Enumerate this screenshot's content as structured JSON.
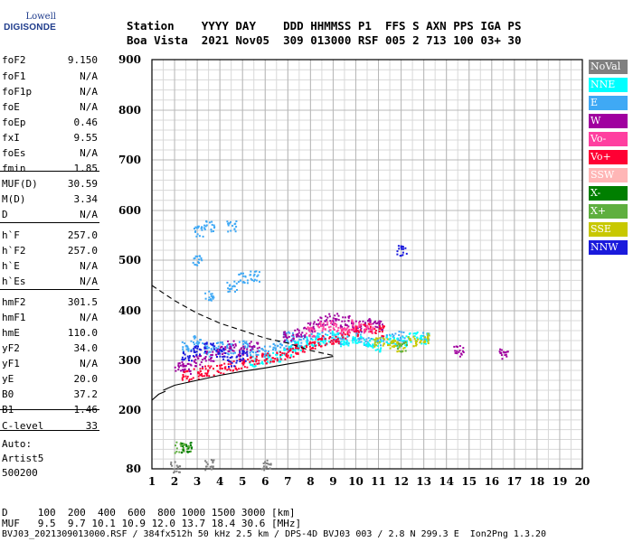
{
  "logo": {
    "line1": "Lowell",
    "line2": "DIGISONDE"
  },
  "header": {
    "row1": "Station    YYYY DAY    DDD HHMMSS P1  FFS S AXN PPS IGA PS",
    "row2": "Boa Vista  2021 Nov05  309 013000 RSF 005 2 713 100 03+ 30"
  },
  "params": [
    {
      "name": "foF2",
      "value": "9.150"
    },
    {
      "name": "foF1",
      "value": "N/A"
    },
    {
      "name": "foF1p",
      "value": "N/A"
    },
    {
      "name": "foE",
      "value": "N/A"
    },
    {
      "name": "foEp",
      "value": "0.46"
    },
    {
      "name": "fxI",
      "value": "9.55"
    },
    {
      "name": "foEs",
      "value": "N/A"
    },
    {
      "name": "fmin",
      "value": "1.85"
    },
    {
      "name": "MUF(D)",
      "value": "30.59"
    },
    {
      "name": "M(D)",
      "value": "3.34"
    },
    {
      "name": "D",
      "value": "N/A"
    },
    {
      "name": "h`F",
      "value": "257.0"
    },
    {
      "name": "h`F2",
      "value": "257.0"
    },
    {
      "name": "h`E",
      "value": "N/A"
    },
    {
      "name": "h`Es",
      "value": "N/A"
    },
    {
      "name": "hmF2",
      "value": "301.5"
    },
    {
      "name": "hmF1",
      "value": "N/A"
    },
    {
      "name": "hmE",
      "value": "110.0"
    },
    {
      "name": "yF2",
      "value": "34.0"
    },
    {
      "name": "yF1",
      "value": "N/A"
    },
    {
      "name": "yE",
      "value": "20.0"
    },
    {
      "name": "B0",
      "value": "37.2"
    },
    {
      "name": "B1",
      "value": "1.46"
    },
    {
      "name": "C-level",
      "value": "33"
    }
  ],
  "auto": {
    "line1": "Auto:",
    "line2": "Artist5",
    "line3": "500200"
  },
  "legend": [
    {
      "label": "NoVal",
      "color": "#808080"
    },
    {
      "label": "NNE",
      "color": "#00ffff"
    },
    {
      "label": "E",
      "color": "#3fa9f5"
    },
    {
      "label": "W",
      "color": "#a0009f"
    },
    {
      "label": "Vo-",
      "color": "#ff3fa0"
    },
    {
      "label": "Vo+",
      "color": "#ff0033"
    },
    {
      "label": "SSW",
      "color": "#ffb6b6"
    },
    {
      "label": "X-",
      "color": "#007f00"
    },
    {
      "label": "X+",
      "color": "#5faf3f"
    },
    {
      "label": "SSE",
      "color": "#c8c800"
    },
    {
      "label": "NNW",
      "color": "#1a1adc"
    }
  ],
  "footer": {
    "row1": "D     100  200  400  600  800 1000 1500 3000 [km]",
    "row2": "MUF   9.5  9.7 10.1 10.9 12.0 13.7 18.4 30.6 [MHz]",
    "row3": "BVJ03_2021309013000.RSF / 384fx512h 50 kHz 2.5 km / DPS-4D BVJ03 003 / 2.8 N 299.3 E  Ion2Png 1.3.20"
  },
  "chart_data": {
    "type": "scatter",
    "xlabel": "",
    "ylabel": "",
    "xlim": [
      1,
      20
    ],
    "ylim": [
      80,
      900
    ],
    "x_ticks": [
      1,
      2,
      3,
      4,
      5,
      6,
      7,
      8,
      9,
      10,
      11,
      12,
      13,
      14,
      15,
      16,
      17,
      18,
      19,
      20
    ],
    "y_ticks": [
      80,
      200,
      300,
      400,
      500,
      600,
      700,
      800,
      900
    ],
    "grid": true,
    "legend_position": "right",
    "series": [
      {
        "name": "E",
        "color": "#3fa9f5",
        "points": [
          [
            2.5,
            330
          ],
          [
            3,
            340
          ],
          [
            3.5,
            320
          ],
          [
            4,
            330
          ],
          [
            4.5,
            325
          ],
          [
            5,
            330
          ],
          [
            5.5,
            320
          ],
          [
            6,
            320
          ],
          [
            6.5,
            330
          ],
          [
            7,
            330
          ],
          [
            7.5,
            340
          ],
          [
            8,
            345
          ],
          [
            8.5,
            350
          ],
          [
            9,
            350
          ],
          [
            9.5,
            345
          ],
          [
            10,
            350
          ],
          [
            10.5,
            340
          ],
          [
            11,
            340
          ],
          [
            11.5,
            345
          ],
          [
            12,
            350
          ],
          [
            3,
            500
          ],
          [
            3.5,
            430
          ],
          [
            4.5,
            450
          ],
          [
            5,
            465
          ],
          [
            5.5,
            470
          ],
          [
            3,
            560
          ],
          [
            3.5,
            570
          ],
          [
            4.5,
            570
          ],
          [
            7,
            350
          ],
          [
            13,
            350
          ]
        ]
      },
      {
        "name": "NNE",
        "color": "#00ffff",
        "points": [
          [
            5.5,
            300
          ],
          [
            6,
            305
          ],
          [
            6.5,
            310
          ],
          [
            7,
            320
          ],
          [
            7.5,
            330
          ],
          [
            8,
            340
          ],
          [
            8.5,
            345
          ],
          [
            9,
            350
          ],
          [
            9.5,
            340
          ],
          [
            10,
            345
          ],
          [
            10.5,
            335
          ],
          [
            11,
            330
          ],
          [
            11.5,
            345
          ],
          [
            12,
            340
          ],
          [
            12.5,
            350
          ],
          [
            13,
            345
          ]
        ]
      },
      {
        "name": "W",
        "color": "#a0009f",
        "points": [
          [
            2.2,
            290
          ],
          [
            2.5,
            285
          ],
          [
            3,
            300
          ],
          [
            3.5,
            310
          ],
          [
            4,
            320
          ],
          [
            4.5,
            330
          ],
          [
            5,
            320
          ],
          [
            5.5,
            330
          ],
          [
            7,
            350
          ],
          [
            7.5,
            360
          ],
          [
            8,
            370
          ],
          [
            8.5,
            380
          ],
          [
            9,
            385
          ],
          [
            9.5,
            380
          ],
          [
            10,
            370
          ],
          [
            10.5,
            375
          ],
          [
            11,
            370
          ],
          [
            14.5,
            320
          ],
          [
            16.5,
            315
          ]
        ]
      },
      {
        "name": "Vo+",
        "color": "#ff0033",
        "points": [
          [
            2.5,
            270
          ],
          [
            3,
            275
          ],
          [
            3.5,
            280
          ],
          [
            4,
            285
          ],
          [
            4.5,
            290
          ],
          [
            5,
            295
          ],
          [
            5.5,
            300
          ],
          [
            6,
            305
          ],
          [
            6.5,
            310
          ],
          [
            7,
            315
          ],
          [
            7.5,
            325
          ],
          [
            8,
            330
          ],
          [
            8.5,
            340
          ],
          [
            9,
            345
          ],
          [
            9.5,
            355
          ],
          [
            10,
            360
          ],
          [
            10.5,
            365
          ],
          [
            11,
            360
          ]
        ]
      },
      {
        "name": "Vo-",
        "color": "#ff3fa0",
        "points": [
          [
            8,
            360
          ],
          [
            8.5,
            370
          ],
          [
            9,
            370
          ],
          [
            9.5,
            365
          ],
          [
            10,
            372
          ],
          [
            10.5,
            368
          ]
        ]
      },
      {
        "name": "SSE",
        "color": "#c8c800",
        "points": [
          [
            11,
            340
          ],
          [
            11.5,
            335
          ],
          [
            12,
            330
          ],
          [
            12.5,
            340
          ],
          [
            13,
            345
          ]
        ]
      },
      {
        "name": "NNW",
        "color": "#1a1adc",
        "points": [
          [
            2.5,
            310
          ],
          [
            3,
            320
          ],
          [
            3.5,
            330
          ],
          [
            4,
            315
          ],
          [
            4.5,
            300
          ],
          [
            5,
            310
          ],
          [
            12,
            520
          ]
        ]
      },
      {
        "name": "X+",
        "color": "#5faf3f",
        "points": [
          [
            2.2,
            125
          ],
          [
            2.5,
            125
          ],
          [
            12,
            330
          ]
        ]
      },
      {
        "name": "X-",
        "color": "#007f00",
        "points": [
          [
            2.5,
            125
          ]
        ]
      },
      {
        "name": "NoVal",
        "color": "#808080",
        "points": [
          [
            3.5,
            90
          ],
          [
            6,
            90
          ],
          [
            2,
            85
          ]
        ]
      }
    ],
    "profile_curve": {
      "style": "solid",
      "points": [
        [
          1.5,
          240
        ],
        [
          2,
          250
        ],
        [
          3,
          260
        ],
        [
          4,
          270
        ],
        [
          5,
          278
        ],
        [
          6,
          285
        ],
        [
          7,
          293
        ],
        [
          8,
          300
        ],
        [
          9,
          308
        ]
      ]
    },
    "virtual_curve": {
      "style": "dashed",
      "points": [
        [
          1,
          450
        ],
        [
          2,
          420
        ],
        [
          3,
          395
        ],
        [
          4,
          375
        ],
        [
          5,
          360
        ],
        [
          6,
          345
        ],
        [
          7,
          335
        ],
        [
          8,
          320
        ],
        [
          9,
          310
        ]
      ]
    },
    "lower_curve": {
      "style": "solid",
      "points": [
        [
          1,
          220
        ],
        [
          1.3,
          232
        ],
        [
          1.6,
          238
        ]
      ]
    }
  }
}
